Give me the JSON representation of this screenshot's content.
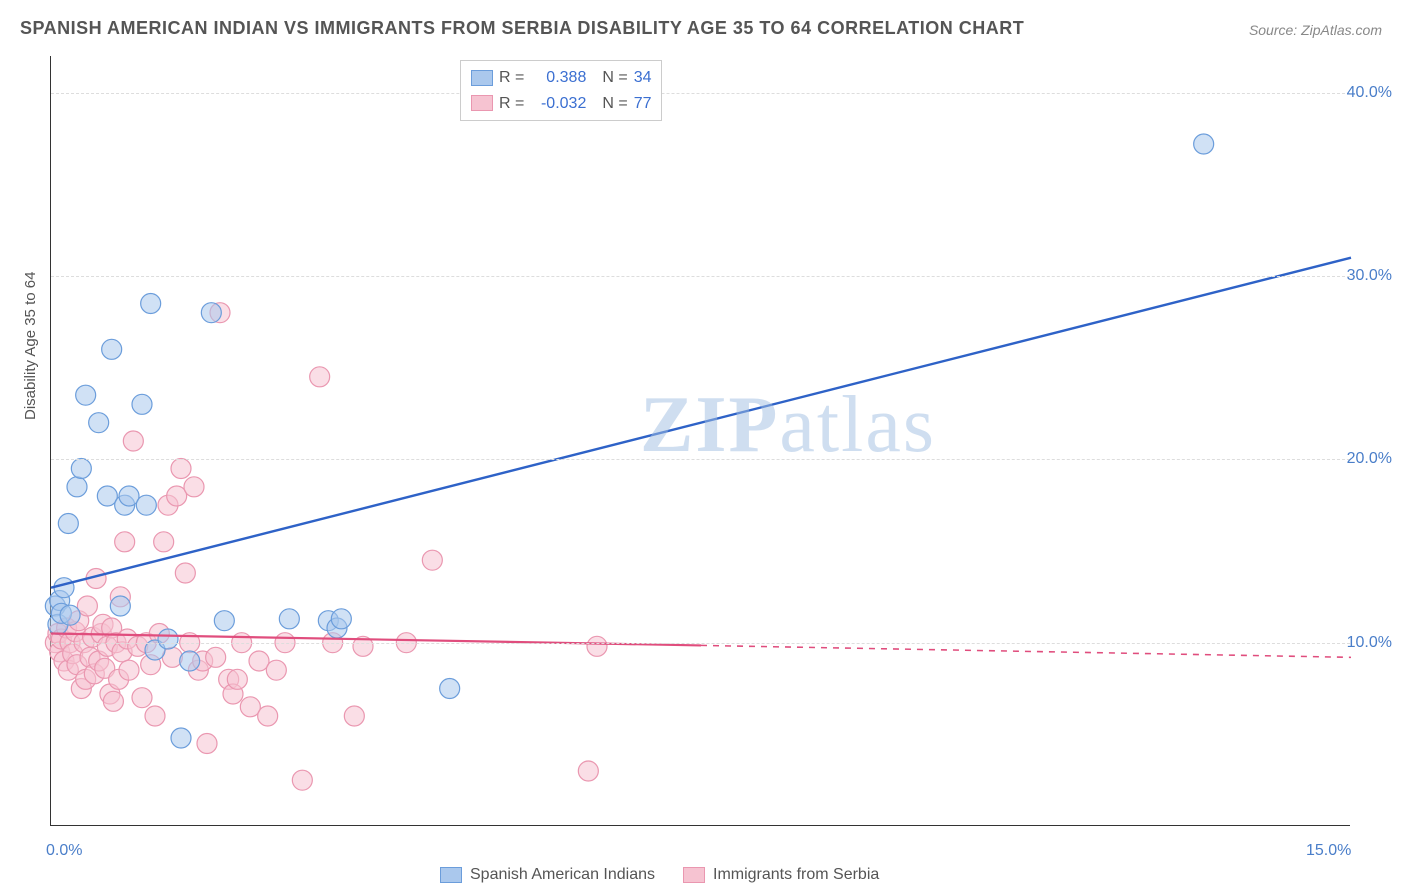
{
  "title": "SPANISH AMERICAN INDIAN VS IMMIGRANTS FROM SERBIA DISABILITY AGE 35 TO 64 CORRELATION CHART",
  "source": "Source: ZipAtlas.com",
  "y_axis_label": "Disability Age 35 to 64",
  "watermark_bold": "ZIP",
  "watermark_light": "atlas",
  "chart": {
    "type": "scatter",
    "xlim": [
      0,
      15
    ],
    "ylim": [
      0,
      42
    ],
    "x_ticks": [
      {
        "v": 0,
        "label": "0.0%"
      },
      {
        "v": 15,
        "label": "15.0%"
      }
    ],
    "y_ticks": [
      {
        "v": 10,
        "label": "10.0%"
      },
      {
        "v": 20,
        "label": "20.0%"
      },
      {
        "v": 30,
        "label": "30.0%"
      },
      {
        "v": 40,
        "label": "40.0%"
      }
    ],
    "background_color": "#ffffff",
    "grid_color": "#dddddd",
    "marker_radius": 10,
    "marker_opacity": 0.55,
    "series": [
      {
        "name": "Spanish American Indians",
        "color_fill": "#aac8ed",
        "color_stroke": "#6b9ddb",
        "line_color": "#2e62c7",
        "line_width": 2.4,
        "R_label": "R =",
        "R_value": "0.388",
        "N_label": "N =",
        "N_value": "34",
        "trend": {
          "x1": 0,
          "y1": 13.0,
          "x2": 15,
          "y2": 31.0,
          "solid_to_x": 15
        },
        "points": [
          [
            0.05,
            12.0
          ],
          [
            0.08,
            11.0
          ],
          [
            0.1,
            12.3
          ],
          [
            0.12,
            11.6
          ],
          [
            0.15,
            13.0
          ],
          [
            0.2,
            16.5
          ],
          [
            0.22,
            11.5
          ],
          [
            0.3,
            18.5
          ],
          [
            0.35,
            19.5
          ],
          [
            0.4,
            23.5
          ],
          [
            0.55,
            22.0
          ],
          [
            0.65,
            18.0
          ],
          [
            0.7,
            26.0
          ],
          [
            0.8,
            12.0
          ],
          [
            0.85,
            17.5
          ],
          [
            0.9,
            18.0
          ],
          [
            1.05,
            23.0
          ],
          [
            1.1,
            17.5
          ],
          [
            1.15,
            28.5
          ],
          [
            1.2,
            9.6
          ],
          [
            1.35,
            10.2
          ],
          [
            1.5,
            4.8
          ],
          [
            1.6,
            9.0
          ],
          [
            1.85,
            28.0
          ],
          [
            2.0,
            11.2
          ],
          [
            2.75,
            11.3
          ],
          [
            3.2,
            11.2
          ],
          [
            3.3,
            10.8
          ],
          [
            3.35,
            11.3
          ],
          [
            4.6,
            7.5
          ],
          [
            13.3,
            37.2
          ]
        ]
      },
      {
        "name": "Immigrants from Serbia",
        "color_fill": "#f6c3d1",
        "color_stroke": "#ea97b0",
        "line_color": "#e04d7d",
        "line_width": 2.2,
        "R_label": "R =",
        "R_value": "-0.032",
        "N_label": "N =",
        "N_value": "77",
        "trend": {
          "x1": 0,
          "y1": 10.5,
          "x2": 15,
          "y2": 9.2,
          "solid_to_x": 7.5
        },
        "points": [
          [
            0.05,
            10.0
          ],
          [
            0.08,
            10.5
          ],
          [
            0.1,
            9.5
          ],
          [
            0.12,
            10.2
          ],
          [
            0.15,
            9.0
          ],
          [
            0.18,
            10.8
          ],
          [
            0.2,
            8.5
          ],
          [
            0.22,
            10.0
          ],
          [
            0.25,
            9.4
          ],
          [
            0.28,
            10.6
          ],
          [
            0.3,
            8.8
          ],
          [
            0.32,
            11.2
          ],
          [
            0.35,
            7.5
          ],
          [
            0.38,
            10.0
          ],
          [
            0.4,
            8.0
          ],
          [
            0.42,
            12.0
          ],
          [
            0.45,
            9.2
          ],
          [
            0.48,
            10.3
          ],
          [
            0.5,
            8.3
          ],
          [
            0.52,
            13.5
          ],
          [
            0.55,
            9.0
          ],
          [
            0.58,
            10.5
          ],
          [
            0.6,
            11.0
          ],
          [
            0.62,
            8.6
          ],
          [
            0.65,
            9.8
          ],
          [
            0.68,
            7.2
          ],
          [
            0.7,
            10.8
          ],
          [
            0.72,
            6.8
          ],
          [
            0.75,
            10.0
          ],
          [
            0.78,
            8.0
          ],
          [
            0.8,
            12.5
          ],
          [
            0.82,
            9.5
          ],
          [
            0.85,
            15.5
          ],
          [
            0.88,
            10.2
          ],
          [
            0.9,
            8.5
          ],
          [
            0.95,
            21.0
          ],
          [
            1.0,
            9.8
          ],
          [
            1.05,
            7.0
          ],
          [
            1.1,
            10.0
          ],
          [
            1.15,
            8.8
          ],
          [
            1.2,
            6.0
          ],
          [
            1.25,
            10.5
          ],
          [
            1.3,
            15.5
          ],
          [
            1.35,
            17.5
          ],
          [
            1.4,
            9.2
          ],
          [
            1.45,
            18.0
          ],
          [
            1.5,
            19.5
          ],
          [
            1.55,
            13.8
          ],
          [
            1.6,
            10.0
          ],
          [
            1.65,
            18.5
          ],
          [
            1.7,
            8.5
          ],
          [
            1.75,
            9.0
          ],
          [
            1.8,
            4.5
          ],
          [
            1.9,
            9.2
          ],
          [
            1.95,
            28.0
          ],
          [
            2.05,
            8.0
          ],
          [
            2.1,
            7.2
          ],
          [
            2.15,
            8.0
          ],
          [
            2.2,
            10.0
          ],
          [
            2.3,
            6.5
          ],
          [
            2.4,
            9.0
          ],
          [
            2.5,
            6.0
          ],
          [
            2.6,
            8.5
          ],
          [
            2.7,
            10.0
          ],
          [
            2.9,
            2.5
          ],
          [
            3.1,
            24.5
          ],
          [
            3.25,
            10.0
          ],
          [
            3.5,
            6.0
          ],
          [
            3.6,
            9.8
          ],
          [
            4.1,
            10.0
          ],
          [
            4.4,
            14.5
          ],
          [
            6.2,
            3.0
          ],
          [
            6.3,
            9.8
          ]
        ]
      }
    ]
  }
}
